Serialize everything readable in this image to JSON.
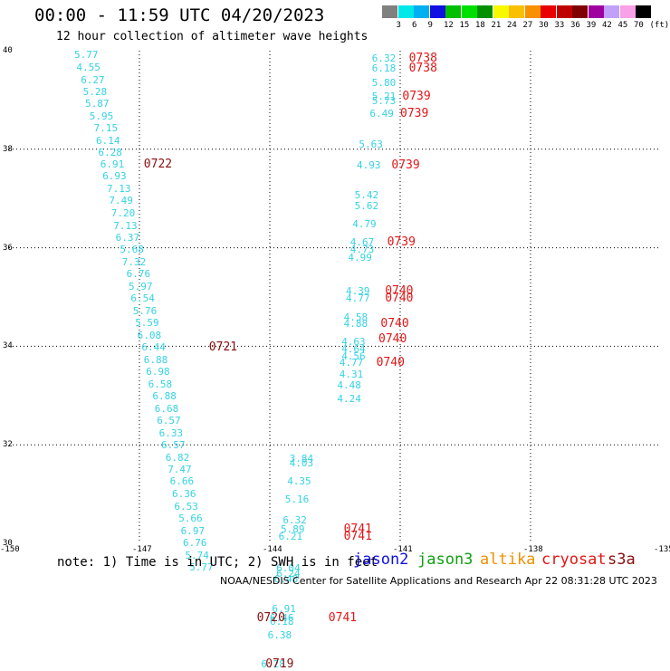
{
  "header": {
    "title": "00:00 - 11:59 UTC 04/20/2023",
    "subtitle": "12 hour collection of altimeter wave heights"
  },
  "legend": {
    "colors": [
      "#808080",
      "#00e8e8",
      "#00b0f0",
      "#1010e0",
      "#00c000",
      "#00e000",
      "#009000",
      "#f8f800",
      "#f8c000",
      "#f89000",
      "#e80000",
      "#c00000",
      "#800000",
      "#a000a0",
      "#c0a0f8",
      "#f8a0e8",
      "#000000"
    ],
    "labels": [
      "3",
      "6",
      "9",
      "12",
      "15",
      "18",
      "21",
      "24",
      "27",
      "30",
      "33",
      "36",
      "39",
      "42",
      "45",
      "70",
      "(ft)"
    ]
  },
  "axes": {
    "lon_labels": [
      "-150",
      "-147",
      "-144",
      "-141",
      "-138",
      "-135"
    ],
    "lat_labels": [
      "40",
      "38",
      "36",
      "34",
      "32",
      "30"
    ]
  },
  "chart_data": {
    "type": "scatter",
    "xlim": [
      -150,
      -135
    ],
    "ylim": [
      30,
      40
    ],
    "grid": true,
    "swh_feet": [
      {
        "lon": -148.5,
        "lat": 39.92,
        "v": "5.77"
      },
      {
        "lon": -148.45,
        "lat": 39.67,
        "v": "4.55"
      },
      {
        "lon": -148.35,
        "lat": 39.42,
        "v": "6.27"
      },
      {
        "lon": -148.3,
        "lat": 39.17,
        "v": "5.28"
      },
      {
        "lon": -148.25,
        "lat": 38.93,
        "v": "5.87"
      },
      {
        "lon": -148.15,
        "lat": 38.68,
        "v": "5.95"
      },
      {
        "lon": -148.05,
        "lat": 38.43,
        "v": "7.15"
      },
      {
        "lon": -148.0,
        "lat": 38.18,
        "v": "6.14"
      },
      {
        "lon": -147.95,
        "lat": 37.95,
        "v": "6.28"
      },
      {
        "lon": -147.9,
        "lat": 37.7,
        "v": "6.91"
      },
      {
        "lon": -147.85,
        "lat": 37.46,
        "v": "6.93"
      },
      {
        "lon": -147.75,
        "lat": 37.21,
        "v": "7.13"
      },
      {
        "lon": -147.7,
        "lat": 36.96,
        "v": "7.49"
      },
      {
        "lon": -147.65,
        "lat": 36.71,
        "v": "7.20"
      },
      {
        "lon": -147.6,
        "lat": 36.46,
        "v": "7.13"
      },
      {
        "lon": -147.55,
        "lat": 36.22,
        "v": "6.37"
      },
      {
        "lon": -147.45,
        "lat": 35.97,
        "v": "5.68"
      },
      {
        "lon": -147.4,
        "lat": 35.72,
        "v": "7.32"
      },
      {
        "lon": -147.3,
        "lat": 35.47,
        "v": "6.76"
      },
      {
        "lon": -147.25,
        "lat": 35.22,
        "v": "5.97"
      },
      {
        "lon": -147.2,
        "lat": 34.98,
        "v": "6.54"
      },
      {
        "lon": -147.15,
        "lat": 34.73,
        "v": "5.76"
      },
      {
        "lon": -147.1,
        "lat": 34.48,
        "v": "5.59"
      },
      {
        "lon": -147.05,
        "lat": 34.23,
        "v": "6.08"
      },
      {
        "lon": -146.95,
        "lat": 33.98,
        "v": "6.44"
      },
      {
        "lon": -146.9,
        "lat": 33.74,
        "v": "6.88"
      },
      {
        "lon": -146.85,
        "lat": 33.49,
        "v": "6.98"
      },
      {
        "lon": -146.8,
        "lat": 33.24,
        "v": "6.58"
      },
      {
        "lon": -146.7,
        "lat": 32.99,
        "v": "6.88"
      },
      {
        "lon": -146.65,
        "lat": 32.74,
        "v": "6.68"
      },
      {
        "lon": -146.6,
        "lat": 32.5,
        "v": "6.57"
      },
      {
        "lon": -146.55,
        "lat": 32.25,
        "v": "6.33"
      },
      {
        "lon": -146.5,
        "lat": 32.0,
        "v": "6.57"
      },
      {
        "lon": -146.4,
        "lat": 31.75,
        "v": "6.82"
      },
      {
        "lon": -146.35,
        "lat": 31.5,
        "v": "7.47"
      },
      {
        "lon": -146.3,
        "lat": 31.26,
        "v": "6.66"
      },
      {
        "lon": -146.25,
        "lat": 31.01,
        "v": "6.36"
      },
      {
        "lon": -146.2,
        "lat": 30.76,
        "v": "6.53"
      },
      {
        "lon": -146.1,
        "lat": 30.51,
        "v": "5.66"
      },
      {
        "lon": -146.05,
        "lat": 30.26,
        "v": "6.97"
      },
      {
        "lon": -146.0,
        "lat": 30.01,
        "v": "6.76"
      },
      {
        "lon": -145.95,
        "lat": 29.77,
        "v": "5.74"
      },
      {
        "lon": -145.85,
        "lat": 29.52,
        "v": "5.77"
      },
      {
        "lon": -141.65,
        "lat": 39.85,
        "v": "6.32"
      },
      {
        "lon": -141.65,
        "lat": 39.65,
        "v": "6.18"
      },
      {
        "lon": -141.65,
        "lat": 39.35,
        "v": "5.80"
      },
      {
        "lon": -141.65,
        "lat": 39.08,
        "v": "5.21"
      },
      {
        "lon": -141.65,
        "lat": 38.98,
        "v": "5.73"
      },
      {
        "lon": -141.7,
        "lat": 38.73,
        "v": "6.49"
      },
      {
        "lon": -141.95,
        "lat": 38.1,
        "v": "5.63"
      },
      {
        "lon": -142.0,
        "lat": 37.68,
        "v": "4.93"
      },
      {
        "lon": -142.05,
        "lat": 37.07,
        "v": "5.42"
      },
      {
        "lon": -142.05,
        "lat": 36.85,
        "v": "5.62"
      },
      {
        "lon": -142.1,
        "lat": 36.49,
        "v": "4.79"
      },
      {
        "lon": -142.15,
        "lat": 36.12,
        "v": "4.67"
      },
      {
        "lon": -142.15,
        "lat": 35.98,
        "v": "4.73"
      },
      {
        "lon": -142.2,
        "lat": 35.8,
        "v": "4.99"
      },
      {
        "lon": -142.25,
        "lat": 35.13,
        "v": "4.39"
      },
      {
        "lon": -142.25,
        "lat": 34.99,
        "v": "4.77"
      },
      {
        "lon": -142.3,
        "lat": 34.6,
        "v": "4.58"
      },
      {
        "lon": -142.3,
        "lat": 34.47,
        "v": "4.88"
      },
      {
        "lon": -142.35,
        "lat": 34.1,
        "v": "4.63"
      },
      {
        "lon": -142.35,
        "lat": 33.96,
        "v": "4.64"
      },
      {
        "lon": -142.35,
        "lat": 33.81,
        "v": "4.56"
      },
      {
        "lon": -142.4,
        "lat": 33.68,
        "v": "4.77"
      },
      {
        "lon": -142.4,
        "lat": 33.44,
        "v": "4.31"
      },
      {
        "lon": -142.45,
        "lat": 33.21,
        "v": "4.48"
      },
      {
        "lon": -142.45,
        "lat": 32.95,
        "v": "4.24"
      },
      {
        "lon": -143.55,
        "lat": 31.73,
        "v": "3.84"
      },
      {
        "lon": -143.55,
        "lat": 31.63,
        "v": "4.03"
      },
      {
        "lon": -143.6,
        "lat": 31.27,
        "v": "4.35"
      },
      {
        "lon": -143.65,
        "lat": 30.9,
        "v": "5.16"
      },
      {
        "lon": -143.7,
        "lat": 30.48,
        "v": "6.32"
      },
      {
        "lon": -143.75,
        "lat": 30.3,
        "v": "5.89"
      },
      {
        "lon": -143.8,
        "lat": 30.14,
        "v": "6.21"
      },
      {
        "lon": -143.85,
        "lat": 29.51,
        "v": "6.04"
      },
      {
        "lon": -143.85,
        "lat": 29.39,
        "v": "6.24"
      },
      {
        "lon": -143.9,
        "lat": 29.29,
        "v": "6.48"
      },
      {
        "lon": -143.95,
        "lat": 28.67,
        "v": "6.91"
      },
      {
        "lon": -144.0,
        "lat": 28.5,
        "v": "6.46"
      },
      {
        "lon": -144.0,
        "lat": 28.42,
        "v": "6.18"
      },
      {
        "lon": -144.05,
        "lat": 28.15,
        "v": "6.38"
      },
      {
        "lon": -144.2,
        "lat": 27.55,
        "v": "6.28"
      }
    ],
    "times_utc": [
      {
        "lon": -140.8,
        "lat": 39.85,
        "t": "0738",
        "c": "#e41616"
      },
      {
        "lon": -140.8,
        "lat": 39.65,
        "t": "0738",
        "c": "#e41616"
      },
      {
        "lon": -140.95,
        "lat": 39.08,
        "t": "0739",
        "c": "#e41616"
      },
      {
        "lon": -141.0,
        "lat": 38.73,
        "t": "0739",
        "c": "#e41616"
      },
      {
        "lon": -141.2,
        "lat": 37.68,
        "t": "0739",
        "c": "#e41616"
      },
      {
        "lon": -141.3,
        "lat": 36.12,
        "t": "0739",
        "c": "#e41616"
      },
      {
        "lon": -141.35,
        "lat": 35.13,
        "t": "0740",
        "c": "#e41616"
      },
      {
        "lon": -141.35,
        "lat": 34.99,
        "t": "0740",
        "c": "#e41616"
      },
      {
        "lon": -141.45,
        "lat": 34.47,
        "t": "0740",
        "c": "#e41616"
      },
      {
        "lon": -141.5,
        "lat": 34.15,
        "t": "0740",
        "c": "#e41616"
      },
      {
        "lon": -141.55,
        "lat": 33.68,
        "t": "0740",
        "c": "#e41616"
      },
      {
        "lon": -142.3,
        "lat": 30.3,
        "t": "0741",
        "c": "#e41616"
      },
      {
        "lon": -142.3,
        "lat": 30.14,
        "t": "0741",
        "c": "#e41616"
      },
      {
        "lon": -142.65,
        "lat": 28.5,
        "t": "0741",
        "c": "#e41616"
      },
      {
        "lon": -146.9,
        "lat": 37.7,
        "t": "0722",
        "c": "#8a0e0e"
      },
      {
        "lon": -145.4,
        "lat": 33.98,
        "t": "0721",
        "c": "#8a0e0e"
      },
      {
        "lon": -144.3,
        "lat": 28.5,
        "t": "0720",
        "c": "#8a0e0e"
      },
      {
        "lon": -144.1,
        "lat": 27.55,
        "t": "0719",
        "c": "#8a0e0e"
      }
    ]
  },
  "note": "note: 1) Time is in UTC; 2) SWH is in feet",
  "satellites": [
    {
      "name": "jason2",
      "color": "#1010e0"
    },
    {
      "name": "jason3",
      "color": "#10a010"
    },
    {
      "name": "altika",
      "color": "#f09000"
    },
    {
      "name": "cryosat",
      "color": "#e41616"
    },
    {
      "name": "s3a",
      "color": "#8a0e0e"
    }
  ],
  "footer": "NOAA/NESDIS Center for Satellite Applications and Research   Apr 22 08:31:28 UTC 2023"
}
